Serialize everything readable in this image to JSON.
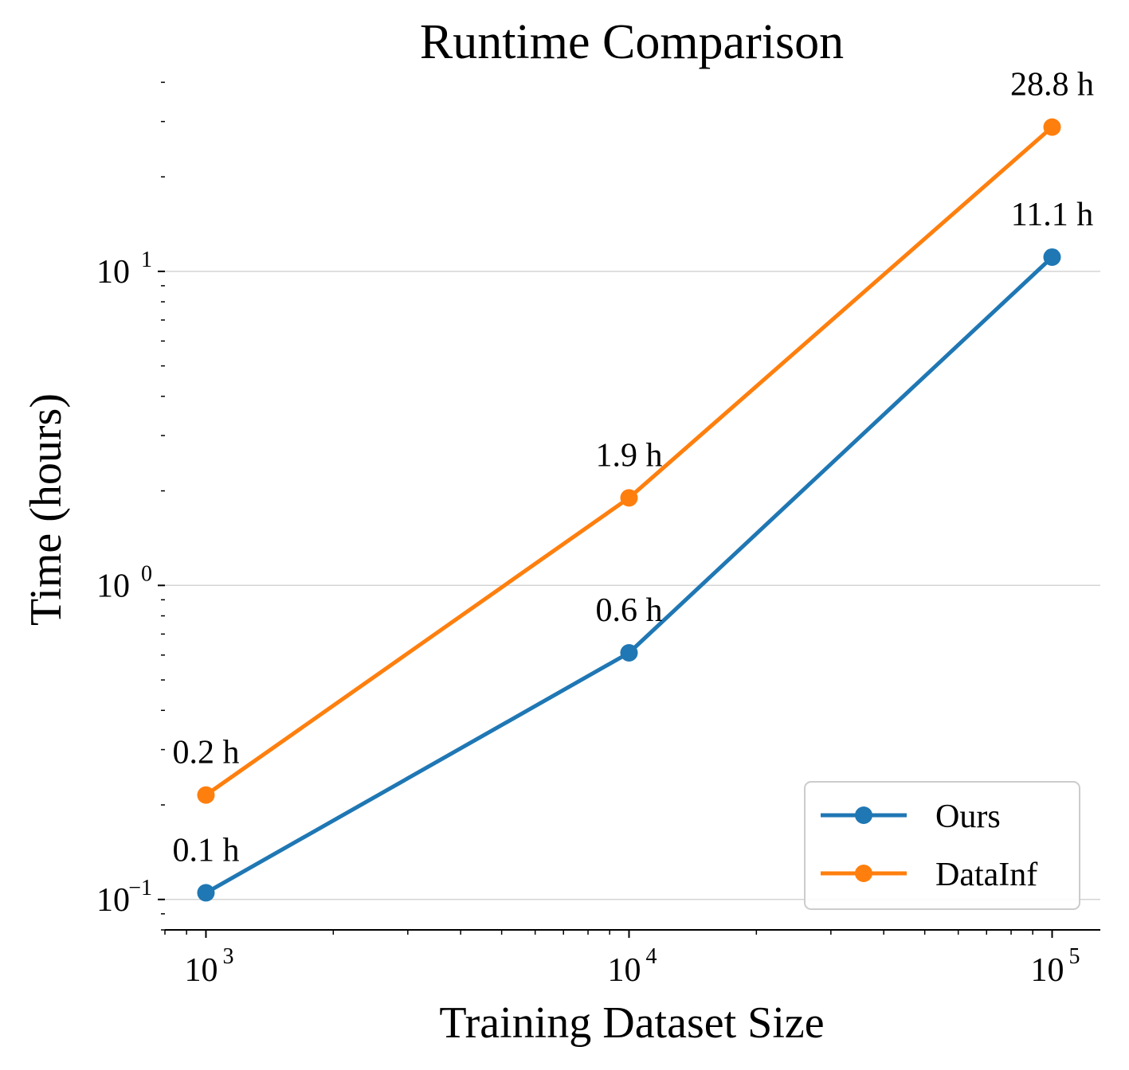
{
  "chart_data": {
    "type": "line",
    "title": "Runtime Comparison",
    "xlabel": "Training Dataset Size",
    "ylabel": "Time (hours)",
    "xscale": "log",
    "yscale": "log",
    "x": [
      1000,
      10000,
      100000
    ],
    "xlim": [
      800,
      130000
    ],
    "ylim": [
      0.08,
      42
    ],
    "xticks": [
      {
        "value": 1000,
        "base": "10",
        "exp": "3"
      },
      {
        "value": 10000,
        "base": "10",
        "exp": "4"
      },
      {
        "value": 100000,
        "base": "10",
        "exp": "5"
      }
    ],
    "yticks": [
      {
        "value": 0.1,
        "base": "10",
        "exp": "−1"
      },
      {
        "value": 1,
        "base": "10",
        "exp": "0"
      },
      {
        "value": 10,
        "base": "10",
        "exp": "1"
      }
    ],
    "grid": "horizontal major",
    "legend": "bottom-right",
    "series": [
      {
        "name": "Ours",
        "color": "#1f77b4",
        "values": [
          0.105,
          0.61,
          11.1
        ],
        "labels": [
          "0.1 h",
          "0.6 h",
          "11.1 h"
        ]
      },
      {
        "name": "DataInf",
        "color": "#ff7f0e",
        "values": [
          0.215,
          1.9,
          28.8
        ],
        "labels": [
          "0.2 h",
          "1.9 h",
          "28.8 h"
        ]
      }
    ]
  }
}
